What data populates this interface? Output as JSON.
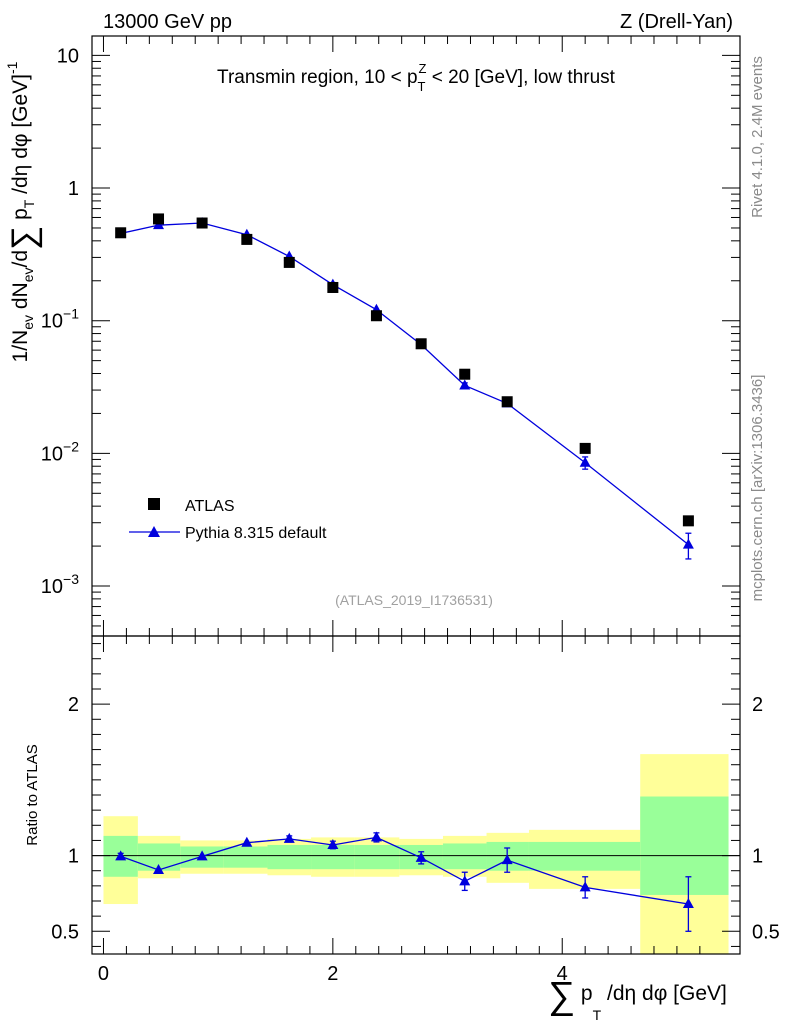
{
  "header": {
    "energy_label": "13000 GeV pp",
    "process_label": "Z (Drell-Yan)"
  },
  "side_labels": {
    "rivet": "Rivet 4.1.0,  2.4M events",
    "mcplots": "mcplots.cern.ch [arXiv:1306.3436]"
  },
  "chart_data": [
    {
      "type": "scatter",
      "panel": "main",
      "title": "Transmin region, 10 < p_T^Z < 20 [GeV], low thrust",
      "ylabel": "1/N_ev dN_ev/d∑p_T/dη dφ [GeV]^-1",
      "yscale": "log",
      "ylim": [
        0.00042,
        14
      ],
      "xlim": [
        -0.1,
        5.55
      ],
      "y_ticks": [
        {
          "v": 10,
          "base": "10",
          "exp": ""
        },
        {
          "v": 1,
          "base": "1",
          "exp": ""
        },
        {
          "v": 0.1,
          "base": "10",
          "exp": "−1"
        },
        {
          "v": 0.01,
          "base": "10",
          "exp": "−2"
        },
        {
          "v": 0.001,
          "base": "10",
          "exp": "−3"
        }
      ],
      "watermark": "(ATLAS_2019_I1736531)",
      "legend": {
        "position": "lower-left",
        "data_label": "ATLAS",
        "mc_label": "Pythia 8.315 default"
      },
      "series": [
        {
          "name": "ATLAS",
          "marker": "square",
          "color": "#000000",
          "x": [
            0.15,
            0.48,
            0.86,
            1.25,
            1.62,
            2.0,
            2.38,
            2.77,
            3.15,
            3.52,
            4.2,
            5.1
          ],
          "y": [
            0.46,
            0.585,
            0.545,
            0.41,
            0.275,
            0.178,
            0.109,
            0.067,
            0.0395,
            0.0245,
            0.0109,
            0.0031
          ]
        },
        {
          "name": "Pythia 8.315 default",
          "marker": "triangle",
          "color": "#0000dd",
          "x": [
            0.15,
            0.48,
            0.86,
            1.25,
            1.62,
            2.0,
            2.38,
            2.77,
            3.15,
            3.52,
            4.2,
            5.1
          ],
          "y": [
            0.455,
            0.525,
            0.545,
            0.445,
            0.305,
            0.187,
            0.121,
            0.066,
            0.0325,
            0.0238,
            0.0085,
            0.00205
          ],
          "err_lo": [
            0.0,
            0.0,
            0.0,
            0.0,
            0.0,
            0.0,
            0.0,
            0.0,
            0.0015,
            0.0012,
            0.0009,
            0.00045
          ],
          "err_hi": [
            0.0,
            0.0,
            0.0,
            0.0,
            0.0,
            0.0,
            0.0,
            0.0,
            0.0015,
            0.0012,
            0.0009,
            0.00045
          ]
        }
      ]
    },
    {
      "type": "line",
      "panel": "ratio",
      "ylabel": "Ratio to ATLAS",
      "xlabel": "∑p_T/dη dφ [GeV]",
      "ylim": [
        0.35,
        2.45
      ],
      "xlim": [
        -0.1,
        5.55
      ],
      "y_ticks": [
        0.5,
        1,
        2
      ],
      "x_ticks": [
        0,
        2,
        4
      ],
      "bands": [
        {
          "x0": 0.0,
          "x1": 0.3,
          "inner": [
            0.86,
            1.13
          ],
          "outer": [
            0.68,
            1.26
          ]
        },
        {
          "x0": 0.3,
          "x1": 0.67,
          "inner": [
            0.9,
            1.08
          ],
          "outer": [
            0.85,
            1.13
          ]
        },
        {
          "x0": 0.67,
          "x1": 1.05,
          "inner": [
            0.92,
            1.06
          ],
          "outer": [
            0.88,
            1.1
          ]
        },
        {
          "x0": 1.05,
          "x1": 1.43,
          "inner": [
            0.92,
            1.06
          ],
          "outer": [
            0.88,
            1.1
          ]
        },
        {
          "x0": 1.43,
          "x1": 1.81,
          "inner": [
            0.91,
            1.07
          ],
          "outer": [
            0.87,
            1.11
          ]
        },
        {
          "x0": 1.81,
          "x1": 2.19,
          "inner": [
            0.91,
            1.07
          ],
          "outer": [
            0.86,
            1.12
          ]
        },
        {
          "x0": 2.19,
          "x1": 2.58,
          "inner": [
            0.91,
            1.07
          ],
          "outer": [
            0.86,
            1.12
          ]
        },
        {
          "x0": 2.58,
          "x1": 2.96,
          "inner": [
            0.91,
            1.07
          ],
          "outer": [
            0.87,
            1.11
          ]
        },
        {
          "x0": 2.96,
          "x1": 3.34,
          "inner": [
            0.91,
            1.08
          ],
          "outer": [
            0.86,
            1.13
          ]
        },
        {
          "x0": 3.34,
          "x1": 3.71,
          "inner": [
            0.9,
            1.09
          ],
          "outer": [
            0.82,
            1.15
          ]
        },
        {
          "x0": 3.71,
          "x1": 4.68,
          "inner": [
            0.9,
            1.09
          ],
          "outer": [
            0.78,
            1.17
          ]
        },
        {
          "x0": 4.68,
          "x1": 5.45,
          "inner": [
            0.74,
            1.39
          ],
          "outer": [
            0.35,
            1.67
          ]
        }
      ],
      "series": [
        {
          "name": "Pythia 8.315 default",
          "color": "#0000dd",
          "x": [
            0.15,
            0.48,
            0.86,
            1.25,
            1.62,
            2.0,
            2.38,
            2.77,
            3.15,
            3.52,
            4.2,
            5.1
          ],
          "y": [
            0.995,
            0.905,
            0.995,
            1.085,
            1.11,
            1.07,
            1.12,
            0.985,
            0.83,
            0.97,
            0.79,
            0.68
          ],
          "err_lo": [
            0.02,
            0.0,
            0.0,
            0.0,
            0.02,
            0.025,
            0.03,
            0.04,
            0.06,
            0.08,
            0.07,
            0.18
          ],
          "err_hi": [
            0.02,
            0.0,
            0.0,
            0.0,
            0.02,
            0.025,
            0.03,
            0.04,
            0.06,
            0.08,
            0.07,
            0.18
          ]
        }
      ]
    }
  ]
}
